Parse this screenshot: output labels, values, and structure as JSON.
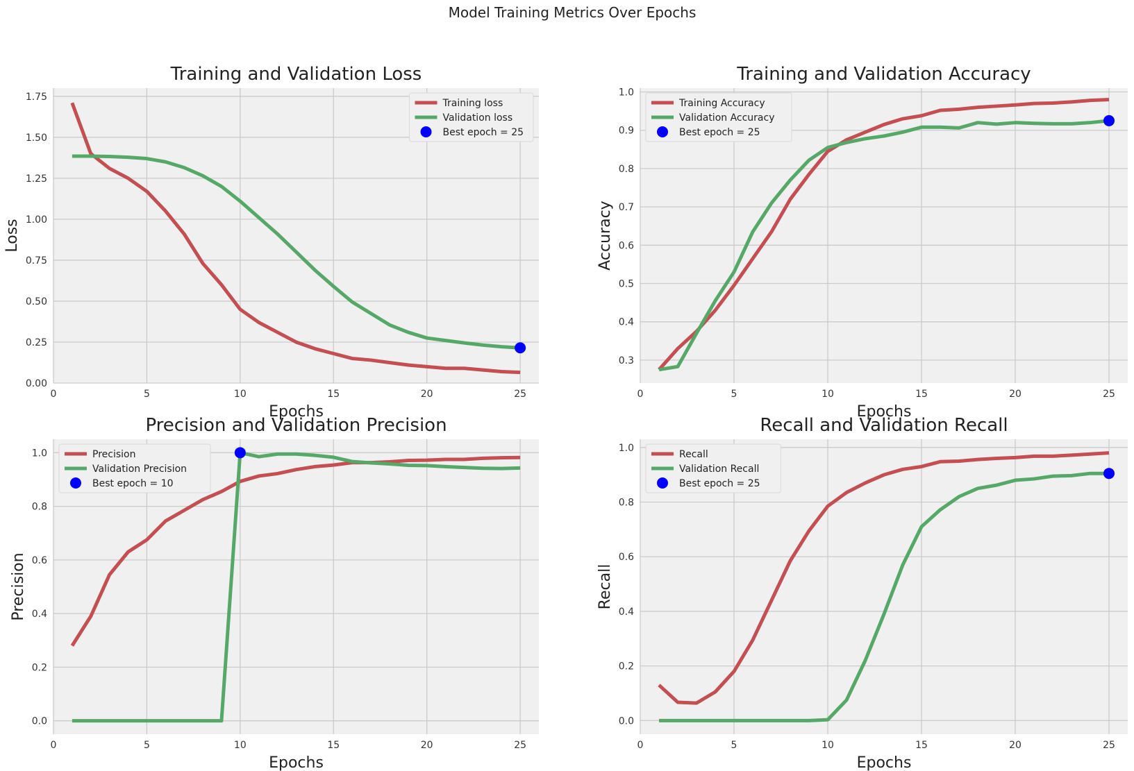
{
  "figure": {
    "suptitle": "Model Training Metrics Over Epochs",
    "colors": {
      "train": "#c44e52",
      "val": "#55a868",
      "best": "#0000ff",
      "background": "#f0f0f0",
      "grid": "#cbcbcb"
    }
  },
  "chart_data": [
    {
      "type": "line",
      "title": "Training and Validation Loss",
      "xlabel": "Epochs",
      "ylabel": "Loss",
      "xlim": [
        0,
        26
      ],
      "ylim": [
        0,
        1.8
      ],
      "xticks": [
        0,
        5,
        10,
        15,
        20,
        25
      ],
      "yticks": [
        0.0,
        0.25,
        0.5,
        0.75,
        1.0,
        1.25,
        1.5,
        1.75
      ],
      "ytick_labels": [
        "0.00",
        "0.25",
        "0.50",
        "0.75",
        "1.00",
        "1.25",
        "1.50",
        "1.75"
      ],
      "legend": "top-right",
      "grid": true,
      "x": [
        1,
        2,
        3,
        4,
        5,
        6,
        7,
        8,
        9,
        10,
        11,
        12,
        13,
        14,
        15,
        16,
        17,
        18,
        19,
        20,
        21,
        22,
        23,
        24,
        25
      ],
      "series": [
        {
          "name": "Training loss",
          "color": "#c44e52",
          "values": [
            1.71,
            1.4,
            1.31,
            1.25,
            1.17,
            1.05,
            0.91,
            0.73,
            0.6,
            0.45,
            0.37,
            0.31,
            0.25,
            0.21,
            0.18,
            0.15,
            0.14,
            0.125,
            0.11,
            0.1,
            0.09,
            0.09,
            0.08,
            0.07,
            0.065
          ]
        },
        {
          "name": "Validation loss",
          "color": "#55a868",
          "values": [
            1.385,
            1.385,
            1.383,
            1.378,
            1.37,
            1.35,
            1.315,
            1.265,
            1.2,
            1.11,
            1.01,
            0.91,
            0.8,
            0.69,
            0.59,
            0.495,
            0.425,
            0.355,
            0.31,
            0.275,
            0.26,
            0.245,
            0.232,
            0.222,
            0.215
          ]
        }
      ],
      "best": {
        "label": "Best epoch = 25",
        "x": 25,
        "y": 0.215
      }
    },
    {
      "type": "line",
      "title": "Training and Validation Accuracy",
      "xlabel": "Epochs",
      "ylabel": "Accuracy",
      "xlim": [
        0,
        26
      ],
      "ylim": [
        0.24,
        1.01
      ],
      "xticks": [
        0,
        5,
        10,
        15,
        20,
        25
      ],
      "yticks": [
        0.3,
        0.4,
        0.5,
        0.6,
        0.7,
        0.8,
        0.9,
        1.0
      ],
      "ytick_labels": [
        "0.3",
        "0.4",
        "0.5",
        "0.6",
        "0.7",
        "0.8",
        "0.9",
        "1.0"
      ],
      "legend": "top-left",
      "grid": true,
      "x": [
        1,
        2,
        3,
        4,
        5,
        6,
        7,
        8,
        9,
        10,
        11,
        12,
        13,
        14,
        15,
        16,
        17,
        18,
        19,
        20,
        21,
        22,
        23,
        24,
        25
      ],
      "series": [
        {
          "name": "Training Accuracy",
          "color": "#c44e52",
          "values": [
            0.275,
            0.33,
            0.375,
            0.43,
            0.495,
            0.565,
            0.635,
            0.72,
            0.785,
            0.845,
            0.875,
            0.895,
            0.915,
            0.93,
            0.938,
            0.952,
            0.955,
            0.96,
            0.963,
            0.966,
            0.97,
            0.971,
            0.974,
            0.978,
            0.98
          ]
        },
        {
          "name": "Validation Accuracy",
          "color": "#55a868",
          "values": [
            0.275,
            0.283,
            0.37,
            0.455,
            0.53,
            0.635,
            0.71,
            0.77,
            0.822,
            0.855,
            0.868,
            0.878,
            0.885,
            0.895,
            0.908,
            0.908,
            0.906,
            0.92,
            0.916,
            0.92,
            0.918,
            0.917,
            0.917,
            0.92,
            0.925
          ]
        }
      ],
      "best": {
        "label": "Best epoch = 25",
        "x": 25,
        "y": 0.925
      }
    },
    {
      "type": "line",
      "title": "Precision and Validation Precision",
      "xlabel": "Epochs",
      "ylabel": "Precision",
      "xlim": [
        0,
        26
      ],
      "ylim": [
        -0.05,
        1.05
      ],
      "xticks": [
        0,
        5,
        10,
        15,
        20,
        25
      ],
      "yticks": [
        0.0,
        0.2,
        0.4,
        0.6,
        0.8,
        1.0
      ],
      "ytick_labels": [
        "0.0",
        "0.2",
        "0.4",
        "0.6",
        "0.8",
        "1.0"
      ],
      "legend": "top-left",
      "grid": true,
      "x": [
        1,
        2,
        3,
        4,
        5,
        6,
        7,
        8,
        9,
        10,
        11,
        12,
        13,
        14,
        15,
        16,
        17,
        18,
        19,
        20,
        21,
        22,
        23,
        24,
        25
      ],
      "series": [
        {
          "name": "Precision",
          "color": "#c44e52",
          "values": [
            0.28,
            0.39,
            0.545,
            0.63,
            0.675,
            0.745,
            0.785,
            0.825,
            0.855,
            0.893,
            0.913,
            0.922,
            0.937,
            0.948,
            0.954,
            0.963,
            0.963,
            0.966,
            0.971,
            0.972,
            0.975,
            0.975,
            0.979,
            0.981,
            0.982
          ]
        },
        {
          "name": "Validation Precision",
          "color": "#55a868",
          "values": [
            0,
            0,
            0,
            0,
            0,
            0,
            0,
            0,
            0,
            1.0,
            0.985,
            0.995,
            0.995,
            0.99,
            0.983,
            0.967,
            0.962,
            0.958,
            0.953,
            0.952,
            0.948,
            0.945,
            0.942,
            0.941,
            0.943
          ]
        }
      ],
      "best": {
        "label": "Best epoch = 10",
        "x": 10,
        "y": 1.0
      }
    },
    {
      "type": "line",
      "title": "Recall and Validation Recall",
      "xlabel": "Epochs",
      "ylabel": "Recall",
      "xlim": [
        0,
        26
      ],
      "ylim": [
        -0.05,
        1.03
      ],
      "xticks": [
        0,
        5,
        10,
        15,
        20,
        25
      ],
      "yticks": [
        0.0,
        0.2,
        0.4,
        0.6,
        0.8,
        1.0
      ],
      "ytick_labels": [
        "0.0",
        "0.2",
        "0.4",
        "0.6",
        "0.8",
        "1.0"
      ],
      "legend": "top-left",
      "grid": true,
      "x": [
        1,
        2,
        3,
        4,
        5,
        6,
        7,
        8,
        9,
        10,
        11,
        12,
        13,
        14,
        15,
        16,
        17,
        18,
        19,
        20,
        21,
        22,
        23,
        24,
        25
      ],
      "series": [
        {
          "name": "Recall",
          "color": "#c44e52",
          "values": [
            0.13,
            0.067,
            0.064,
            0.105,
            0.18,
            0.295,
            0.44,
            0.585,
            0.695,
            0.785,
            0.835,
            0.87,
            0.9,
            0.92,
            0.93,
            0.948,
            0.95,
            0.956,
            0.96,
            0.963,
            0.968,
            0.968,
            0.972,
            0.976,
            0.98
          ]
        },
        {
          "name": "Validation Recall",
          "color": "#55a868",
          "values": [
            0,
            0,
            0,
            0,
            0,
            0,
            0,
            0,
            0,
            0.003,
            0.075,
            0.22,
            0.39,
            0.57,
            0.71,
            0.772,
            0.82,
            0.85,
            0.862,
            0.88,
            0.885,
            0.895,
            0.897,
            0.905,
            0.905
          ]
        }
      ],
      "best": {
        "label": "Best epoch = 25",
        "x": 25,
        "y": 0.905
      }
    }
  ]
}
